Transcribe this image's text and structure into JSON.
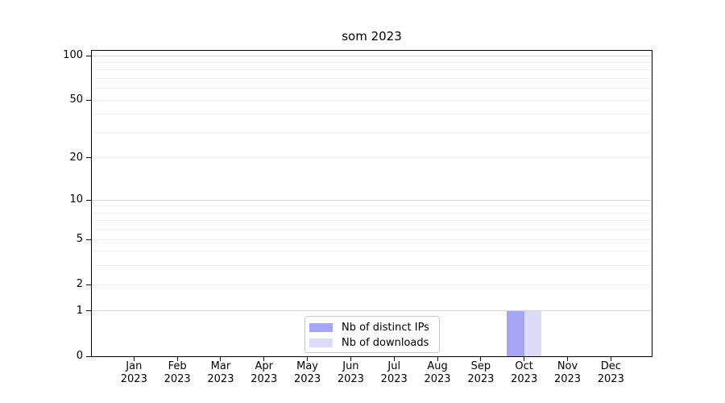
{
  "chart_data": {
    "type": "bar",
    "title": "som 2023",
    "categories": [
      "Jan 2023",
      "Feb 2023",
      "Mar 2023",
      "Apr 2023",
      "May 2023",
      "Jun 2023",
      "Jul 2023",
      "Aug 2023",
      "Sep 2023",
      "Oct 2023",
      "Nov 2023",
      "Dec 2023"
    ],
    "series": [
      {
        "name": "Nb of distinct IPs",
        "color": "#a6a6f2",
        "values": [
          0,
          0,
          0,
          0,
          0,
          0,
          0,
          0,
          0,
          1,
          0,
          0
        ]
      },
      {
        "name": "Nb of downloads",
        "color": "#dcdcf8",
        "values": [
          0,
          0,
          0,
          0,
          0,
          0,
          0,
          0,
          0,
          1,
          0,
          0
        ]
      }
    ],
    "xlabel": "",
    "ylabel": "",
    "yscale": "log1p",
    "ylim": [
      0,
      110
    ],
    "yticks": [
      0,
      1,
      2,
      5,
      10,
      20,
      50,
      100
    ],
    "major_gridlines": [
      1,
      10,
      100
    ],
    "minor_gridlines": [
      2,
      3,
      4,
      5,
      6,
      7,
      8,
      9,
      20,
      30,
      40,
      50,
      60,
      70,
      80,
      90
    ],
    "grid": "horizontal",
    "legend_position": "lower center",
    "colors": {
      "axis": "#000000",
      "major_grid": "#d6d6d6",
      "minor_grid": "#efefef",
      "legend_border": "#c9c9c9",
      "background": "#ffffff"
    }
  }
}
